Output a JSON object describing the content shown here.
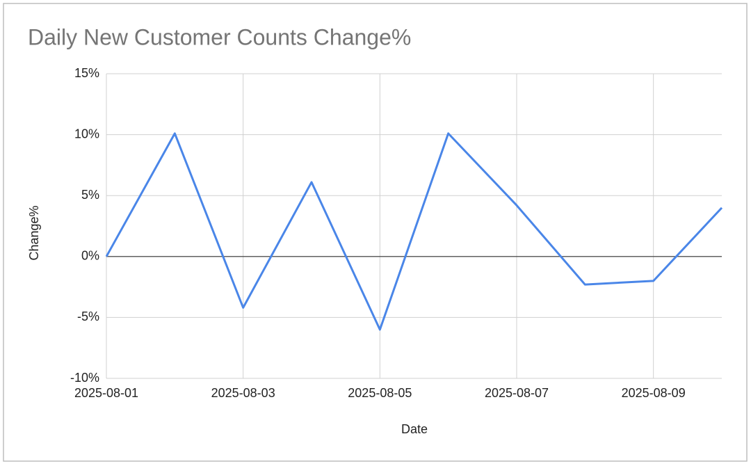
{
  "chart_data": {
    "type": "line",
    "title": "Daily New Customer Counts Change%",
    "x_label": "Date",
    "y_label": "Change%",
    "x": [
      "2025-08-01",
      "2025-08-02",
      "2025-08-03",
      "2025-08-04",
      "2025-08-05",
      "2025-08-06",
      "2025-08-07",
      "2025-08-08",
      "2025-08-09",
      "2025-08-10"
    ],
    "values": [
      0,
      10.1,
      -4.2,
      6.1,
      -6.0,
      10.1,
      4.2,
      -2.3,
      -2.0,
      4.0
    ],
    "color": "#4a86e8",
    "xticks": [
      "2025-08-01",
      "2025-08-03",
      "2025-08-05",
      "2025-08-07",
      "2025-08-09"
    ],
    "ylim": [
      -10,
      15
    ],
    "yticks": [
      {
        "value": -10,
        "label": "-10%"
      },
      {
        "value": -5,
        "label": "-5%"
      },
      {
        "value": 0,
        "label": "0%"
      },
      {
        "value": 5,
        "label": "5%"
      },
      {
        "value": 10,
        "label": "10%"
      },
      {
        "value": 15,
        "label": "15%"
      }
    ],
    "grid": true
  }
}
